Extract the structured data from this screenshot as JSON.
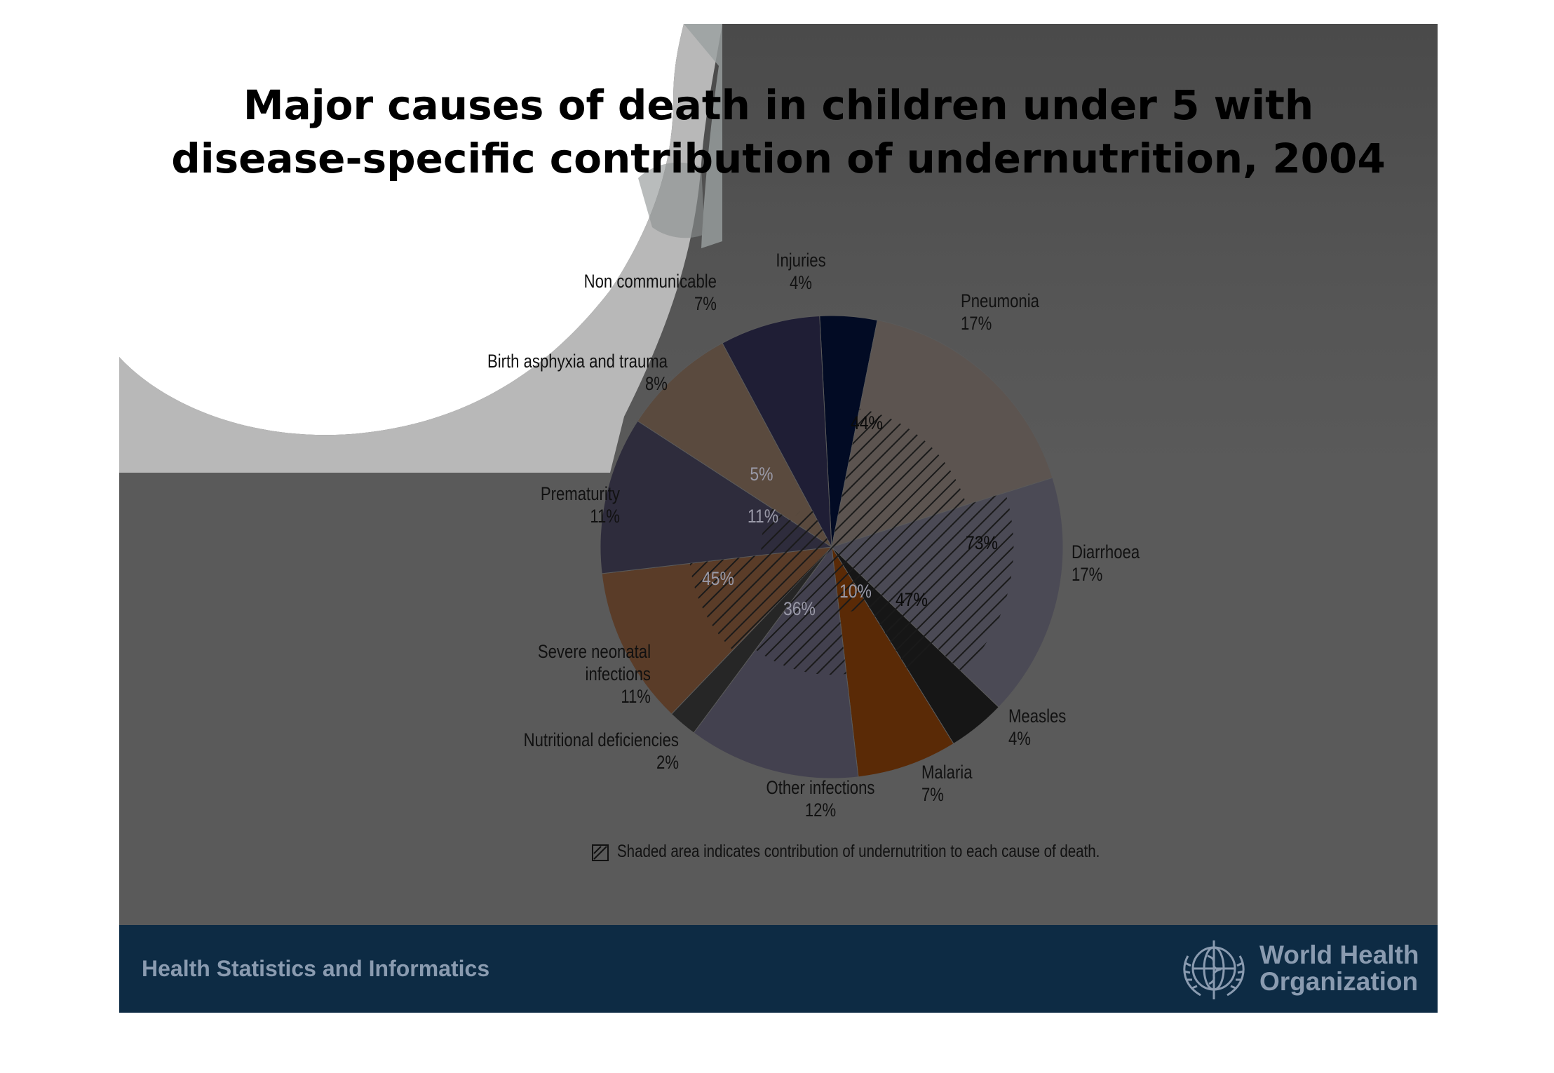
{
  "title": {
    "line1": "Major causes of death in children under 5 with",
    "line2": "disease-specific contribution of undernutrition, 2004"
  },
  "chart_data": {
    "type": "pie",
    "title": "Major causes of death in children under 5 with disease-specific contribution of undernutrition, 2004",
    "slices": [
      {
        "label": "Injuries",
        "value": 4,
        "value_label": "4%",
        "color": "#020b24",
        "undernutrition": null
      },
      {
        "label": "Pneumonia",
        "value": 17,
        "value_label": "17%",
        "color": "#5c5450",
        "undernutrition": 44,
        "undernutrition_label": "44%"
      },
      {
        "label": "Diarrhoea",
        "value": 17,
        "value_label": "17%",
        "color": "#4b4a55",
        "undernutrition": 73,
        "undernutrition_label": "73%"
      },
      {
        "label": "Measles",
        "value": 4,
        "value_label": "4%",
        "color": "#161616",
        "undernutrition": 47,
        "undernutrition_label": "47%"
      },
      {
        "label": "Malaria",
        "value": 7,
        "value_label": "7%",
        "color": "#5a2a06",
        "undernutrition": 10,
        "undernutrition_label": "10%"
      },
      {
        "label": "Other infections",
        "value": 12,
        "value_label": "12%",
        "color": "#43414f",
        "undernutrition": 36,
        "undernutrition_label": "36%"
      },
      {
        "label": "Nutritional deficiencies",
        "value": 2,
        "value_label": "2%",
        "color": "#262626",
        "undernutrition": null
      },
      {
        "label": "Severe neonatal infections",
        "value": 11,
        "value_label": "11%",
        "color": "#5a3c28",
        "undernutrition": 45,
        "undernutrition_label": "45%"
      },
      {
        "label": "Prematurity",
        "value": 11,
        "value_label": "11%",
        "color": "#2e2c3c",
        "undernutrition": 11,
        "undernutrition_label": "11%"
      },
      {
        "label": "Birth asphyxia and trauma",
        "value": 8,
        "value_label": "8%",
        "color": "#5a4a3e",
        "undernutrition": 5,
        "undernutrition_label": "5%"
      },
      {
        "label": "Non communicable",
        "value": 7,
        "value_label": "7%",
        "color": "#1f1e35",
        "undernutrition": null
      }
    ],
    "legend_note": "Shaded area indicates contribution of undernutrition to each cause of death."
  },
  "footer": {
    "left_text": "Health Statistics and Informatics",
    "org_line1": "World Health",
    "org_line2": "Organization"
  },
  "colors": {
    "slide_bg": "#5a5a5a",
    "footer_bg": "#0d2b44",
    "footer_text": "#8a9bb0"
  }
}
